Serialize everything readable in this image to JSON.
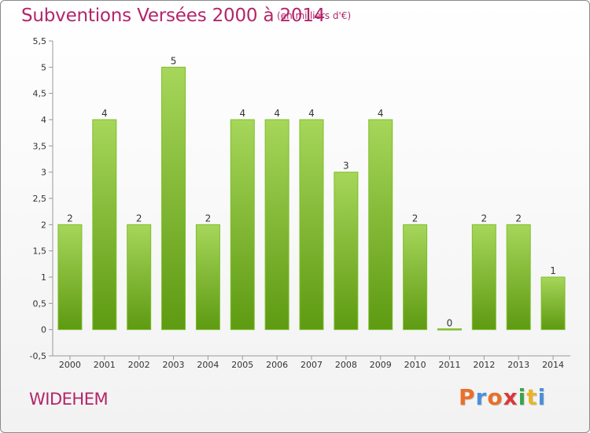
{
  "title": "Subventions Versées 2000 à 2014",
  "unit_note": "(en milliers d'€)",
  "commune": "WIDEHEM",
  "logo": {
    "letters": [
      "P",
      "r",
      "o",
      "x",
      "i",
      "t",
      "i"
    ],
    "colors": [
      "#e8702a",
      "#4a90d9",
      "#e8702a",
      "#d93a3a",
      "#3aa64a",
      "#e8b52a",
      "#4a90d9"
    ]
  },
  "colors": {
    "title": "#b3256a",
    "bar_top": "#a6d65a",
    "bar_bottom": "#5e9a12",
    "bar_edge": "#7fbf2a"
  },
  "chart_data": {
    "type": "bar",
    "title": "Subventions Versées 2000 à 2014",
    "xlabel": "",
    "ylabel": "",
    "categories": [
      "2000",
      "2001",
      "2002",
      "2003",
      "2004",
      "2005",
      "2006",
      "2007",
      "2008",
      "2009",
      "2010",
      "2011",
      "2012",
      "2013",
      "2014"
    ],
    "values": [
      2,
      4,
      2,
      5,
      2,
      4,
      4,
      4,
      3,
      4,
      2,
      0,
      2,
      2,
      1
    ],
    "data_labels": [
      "2",
      "4",
      "2",
      "5",
      "2",
      "4",
      "4",
      "4",
      "3",
      "4",
      "2",
      "0",
      "2",
      "2",
      "1"
    ],
    "ylim": [
      -0.5,
      5.5
    ],
    "yticks": [
      -0.5,
      0,
      0.5,
      1,
      1.5,
      2,
      2.5,
      3,
      3.5,
      4,
      4.5,
      5,
      5.5
    ],
    "ytick_labels": [
      "-0,5",
      "0",
      "0,5",
      "1",
      "1,5",
      "2",
      "2,5",
      "3",
      "3,5",
      "4",
      "4,5",
      "5",
      "5,5"
    ],
    "grid": false,
    "legend": "none"
  }
}
